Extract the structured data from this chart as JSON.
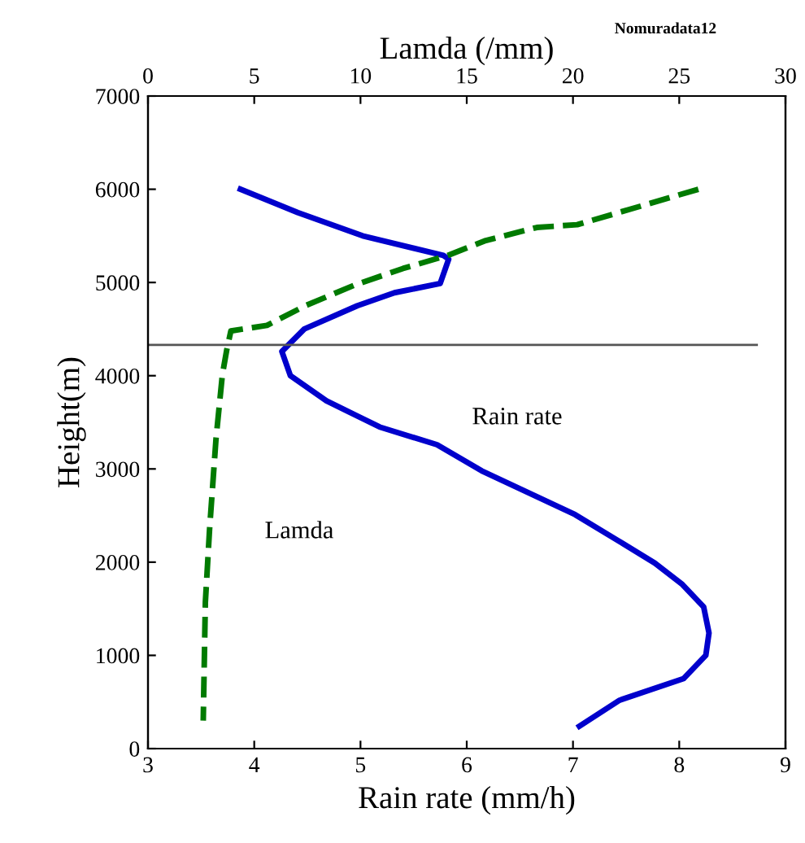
{
  "chart_data": {
    "type": "line",
    "xlabel": "Rain rate (mm/h)",
    "x2label": "Lamda (/mm)",
    "ylabel": "Height(m)",
    "xlim": [
      3,
      9
    ],
    "xticks": [
      3,
      4,
      5,
      6,
      7,
      8,
      9
    ],
    "x2lim": [
      0,
      30
    ],
    "x2ticks": [
      0,
      5,
      10,
      15,
      20,
      25,
      30
    ],
    "ylim": [
      0,
      7000
    ],
    "yticks": [
      0,
      1000,
      2000,
      3000,
      4000,
      5000,
      6000,
      7000
    ],
    "grid": false,
    "legend": false,
    "marker": "none",
    "series": [
      {
        "color": "#0000cc",
        "line_style": "solid",
        "x": [
          3.87,
          4.41,
          5.02,
          5.78,
          5.83,
          5.75,
          5.32,
          4.97,
          4.47,
          4.26,
          4.34,
          4.68,
          5.18,
          5.72,
          6.14,
          7.02,
          7.47,
          7.77,
          8.03,
          8.23,
          8.28,
          8.25,
          8.04,
          7.44,
          7.06
        ],
        "values": [
          6000,
          5750,
          5500,
          5290,
          5250,
          4990,
          4890,
          4750,
          4500,
          4260,
          4000,
          3730,
          3450,
          3260,
          2980,
          2510,
          2200,
          1990,
          1760,
          1520,
          1240,
          1000,
          750,
          520,
          240
        ]
      },
      {
        "color": "#007a00",
        "line_style": "dashed",
        "axis": "x2",
        "x": [
          25.9,
          20.2,
          18.3,
          15.9,
          14.1,
          12.0,
          9.7,
          7.4,
          5.6,
          3.9,
          3.7,
          3.5,
          3.2,
          2.9,
          2.7,
          2.6
        ],
        "values": [
          6000,
          5620,
          5590,
          5450,
          5290,
          5150,
          4970,
          4750,
          4540,
          4480,
          4270,
          4010,
          3320,
          2360,
          1570,
          300
        ]
      }
    ],
    "ref_lines": [
      {
        "axis": "y",
        "value": 4330,
        "color": "#555555"
      }
    ],
    "annotations": [
      "Rain rate",
      "Lamda",
      "Nomuradata12"
    ]
  }
}
